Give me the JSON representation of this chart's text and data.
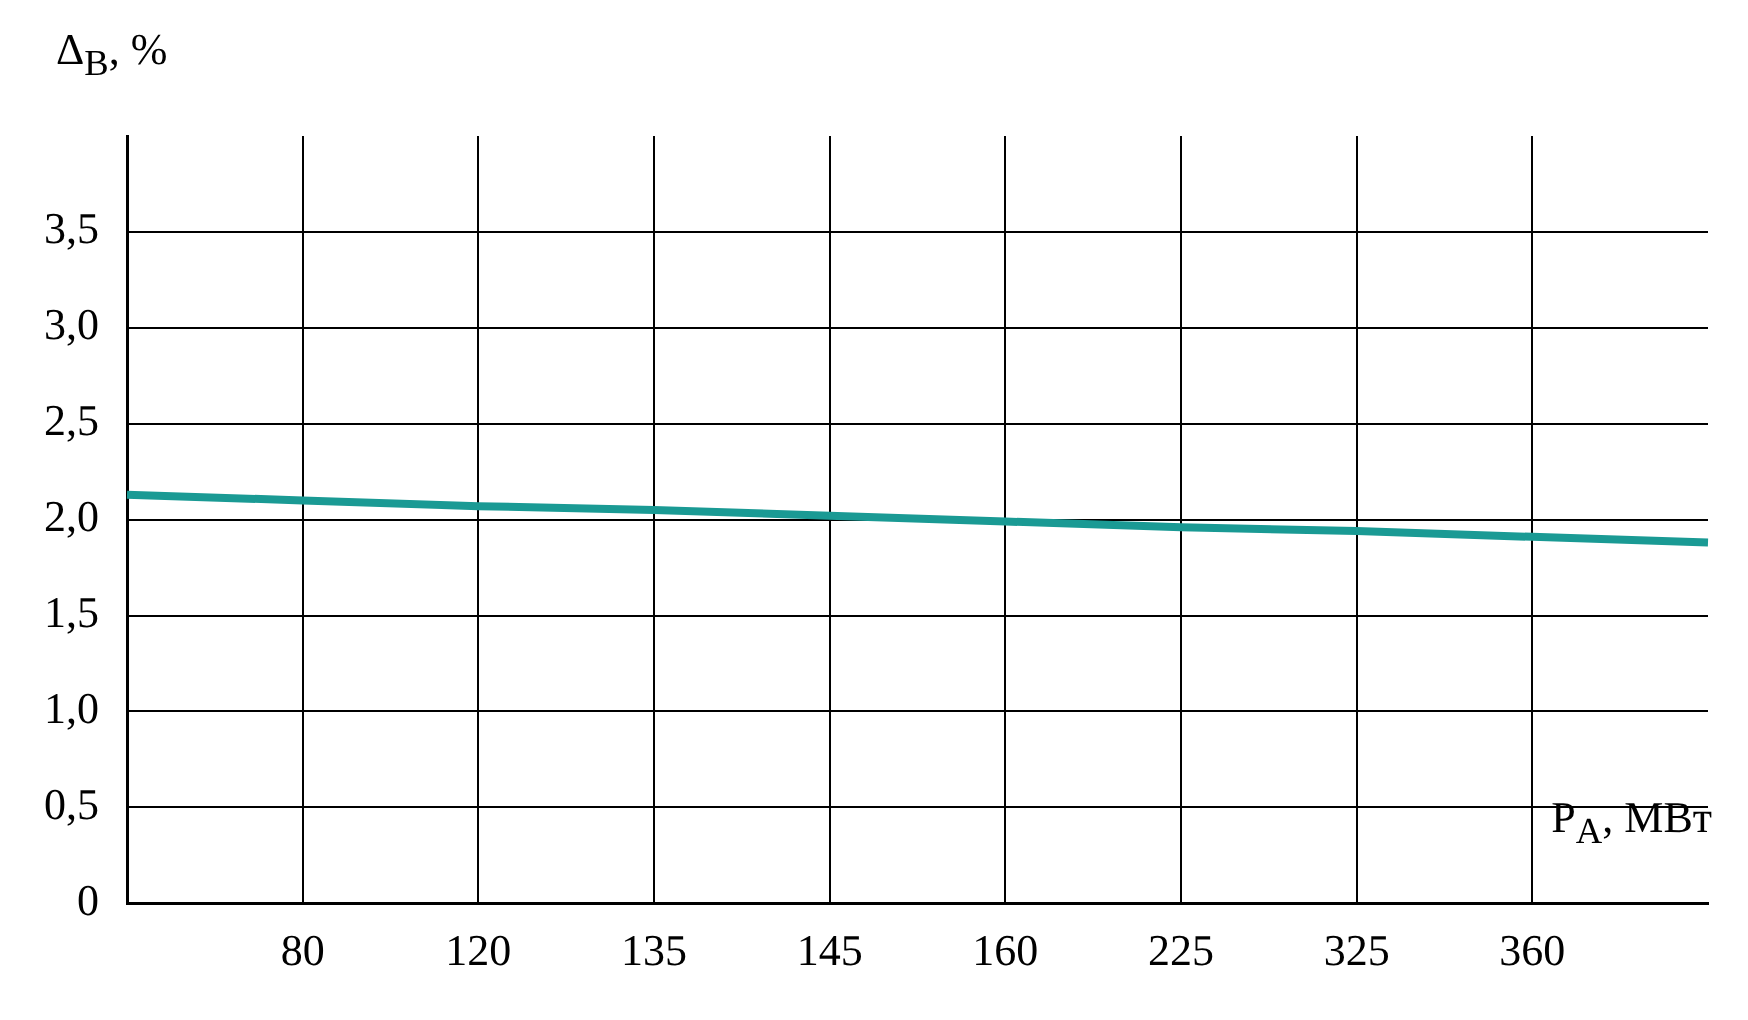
{
  "chart_data": {
    "type": "line",
    "xlabel": "P$_{А}$, МВт",
    "ylabel": "Δ$_{В}$, %",
    "categories": [
      null,
      "80",
      "120",
      "135",
      "145",
      "160",
      "225",
      "325",
      "360",
      null
    ],
    "series": [
      {
        "color": "#1a9a94",
        "values": [
          2.13,
          2.1,
          2.07,
          2.05,
          2.02,
          1.99,
          1.96,
          1.94,
          1.91,
          1.88
        ]
      }
    ],
    "ylim": [
      0,
      4
    ],
    "yticks": [
      {
        "value": 0,
        "label": "0"
      },
      {
        "value": 0.5,
        "label": "0,5"
      },
      {
        "value": 1,
        "label": "1,0"
      },
      {
        "value": 1.5,
        "label": "1,5"
      },
      {
        "value": 2,
        "label": "2,0"
      },
      {
        "value": 2.5,
        "label": "2,5"
      },
      {
        "value": 3,
        "label": "3,0"
      },
      {
        "value": 3.5,
        "label": "3,5"
      }
    ],
    "grid": true,
    "legend": false,
    "marker": "none",
    "line_style": "solid"
  }
}
